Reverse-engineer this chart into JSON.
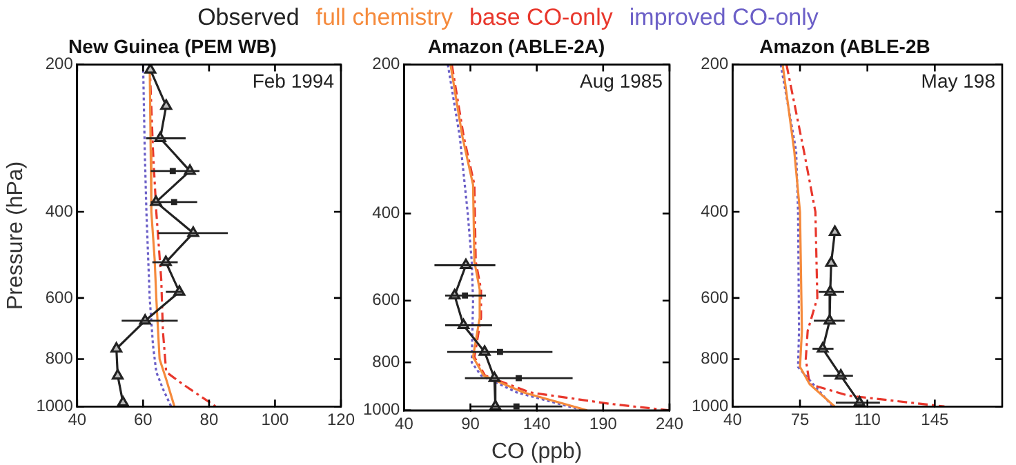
{
  "chart_data": [
    {
      "type": "line",
      "title": "New Guinea (PEM WB)",
      "ylabel": "Pressure (hPa)",
      "annotations": [
        "Feb 1994"
      ],
      "legend": "top",
      "log": "y",
      "grid": false,
      "xlim": [
        40,
        120
      ],
      "xticks": [
        40,
        60,
        80,
        100,
        120
      ],
      "ylim": [
        1000,
        200
      ],
      "yticks": [
        200,
        400,
        600,
        800,
        1000
      ],
      "series": [
        {
          "name": "Observed",
          "color": "#222222",
          "marker": "triangle",
          "line_style": "solid",
          "x": [
            62.2,
            67.0,
            65.2,
            74.2,
            63.9,
            75.2,
            66.9,
            71.0,
            60.6,
            51.9,
            52.3,
            53.9
          ],
          "values": [
            205,
            243,
            283,
            330,
            382,
            442,
            507,
            583,
            668,
            762,
            865,
            982
          ],
          "xerrors": [
            null,
            null,
            [
              60.9,
              72.9
            ],
            [
              62.3,
              77.1
            ],
            [
              62.3,
              76.4
            ],
            [
              64.6,
              85.7
            ],
            [
              62.8,
              70.5
            ],
            [
              66.9,
              72.1
            ],
            [
              53.5,
              70.5
            ],
            null,
            null,
            null
          ]
        },
        {
          "color": "#222222",
          "type": "scatter",
          "marker": "square",
          "x": [
            69.0,
            69.4
          ],
          "values": [
            330,
            382
          ]
        },
        {
          "name": "full chemistry",
          "color": "#f58a3c",
          "marker": "none",
          "line_style": "solid",
          "x": [
            62,
            62.3,
            62.5,
            63.5,
            64,
            65,
            67,
            69.5
          ],
          "values": [
            200,
            300,
            400,
            500,
            600,
            800,
            880,
            1000
          ]
        },
        {
          "name": "base CO-only",
          "color": "#e8372c",
          "marker": "none",
          "line_style": "dashed",
          "x": [
            62,
            63,
            64,
            65.5,
            66,
            67,
            72,
            82
          ],
          "values": [
            200,
            300,
            400,
            550,
            700,
            850,
            900,
            1000
          ]
        },
        {
          "name": "improved CO-only",
          "color": "#6b5fc7",
          "marker": "none",
          "line_style": "dotted",
          "x": [
            60,
            60.5,
            61,
            62,
            63,
            64,
            66,
            68.5
          ],
          "values": [
            200,
            300,
            400,
            600,
            750,
            850,
            920,
            1000
          ]
        }
      ]
    },
    {
      "type": "line",
      "title": "Amazon (ABLE-2A)",
      "xlabel": "CO (ppb)",
      "annotations": [
        "Aug 1985"
      ],
      "log": "y",
      "grid": false,
      "xlim": [
        40,
        240
      ],
      "xticks": [
        40,
        90,
        140,
        190,
        240
      ],
      "ylim": [
        1000,
        200
      ],
      "yticks": [
        200,
        400,
        600,
        800,
        1000
      ],
      "series": [
        {
          "color": "#222222",
          "marker": "triangle",
          "line_style": "solid",
          "x": [
            86.6,
            78.1,
            84.8,
            100.7,
            108.1,
            108.8
          ],
          "values": [
            509,
            586,
            673,
            762,
            861,
            982
          ],
          "xerrors": [
            [
              62.9,
              108.8
            ],
            [
              71,
              101.7
            ],
            [
              71,
              106.3
            ],
            [
              72.5,
              151.8
            ],
            [
              85.9,
              167
            ],
            [
              90.4,
              159.2
            ]
          ]
        },
        {
          "color": "#222222",
          "type": "scatter",
          "marker": "square",
          "x": [
            85.9,
            112.3,
            126.4,
            124.7
          ],
          "values": [
            586,
            762,
            861,
            982
          ]
        },
        {
          "color": "#f58a3c",
          "marker": "none",
          "line_style": "solid",
          "x": [
            75,
            84,
            92,
            93,
            97,
            97,
            92,
            100,
            130,
            178
          ],
          "values": [
            200,
            280,
            350,
            500,
            570,
            650,
            780,
            850,
            920,
            1000
          ]
        },
        {
          "color": "#e8372c",
          "marker": "none",
          "line_style": "dashed",
          "x": [
            76,
            85,
            93,
            94,
            98,
            98,
            93,
            101,
            135,
            195,
            240
          ],
          "values": [
            200,
            280,
            350,
            500,
            570,
            650,
            780,
            850,
            920,
            970,
            1000
          ]
        },
        {
          "color": "#6b5fc7",
          "marker": "none",
          "line_style": "dotted",
          "x": [
            73,
            82,
            88,
            91,
            92,
            91,
            98,
            125,
            175
          ],
          "values": [
            200,
            280,
            400,
            500,
            600,
            800,
            850,
            920,
            1000
          ]
        }
      ]
    },
    {
      "type": "line",
      "title": "Amazon (ABLE-2B",
      "annotations": [
        "May 198"
      ],
      "log": "y",
      "grid": false,
      "xlim": [
        40,
        180
      ],
      "xticks": [
        40,
        75,
        110,
        145
      ],
      "ylim": [
        1000,
        200
      ],
      "yticks": [
        200,
        400,
        600,
        800,
        1000
      ],
      "series": [
        {
          "color": "#222222",
          "marker": "triangle",
          "line_style": "solid",
          "x": [
            93.1,
            91.2,
            90.7,
            90.4,
            86.8,
            96.2,
            105.9
          ],
          "values": [
            440,
            509,
            583,
            668,
            762,
            865,
            982
          ],
          "xerrors": [
            null,
            null,
            [
              84.7,
              97.9
            ],
            [
              82.2,
              98.2
            ],
            [
              81.5,
              92.4
            ],
            [
              87.1,
              102.5
            ],
            [
              93.6,
              116.5
            ]
          ]
        },
        {
          "color": "#f58a3c",
          "marker": "none",
          "line_style": "solid",
          "x": [
            66,
            72,
            75,
            76,
            75,
            80,
            93
          ],
          "values": [
            200,
            300,
            400,
            700,
            830,
            900,
            1000
          ]
        },
        {
          "color": "#e8372c",
          "marker": "none",
          "line_style": "dashed",
          "x": [
            68,
            77,
            83,
            84,
            79,
            78,
            80,
            100,
            150
          ],
          "values": [
            200,
            300,
            400,
            600,
            700,
            800,
            900,
            950,
            1000
          ]
        },
        {
          "color": "#6b5fc7",
          "marker": "none",
          "line_style": "dotted",
          "x": [
            65,
            73,
            74,
            74.5,
            74,
            92
          ],
          "values": [
            200,
            300,
            400,
            700,
            830,
            1000
          ]
        }
      ]
    }
  ]
}
